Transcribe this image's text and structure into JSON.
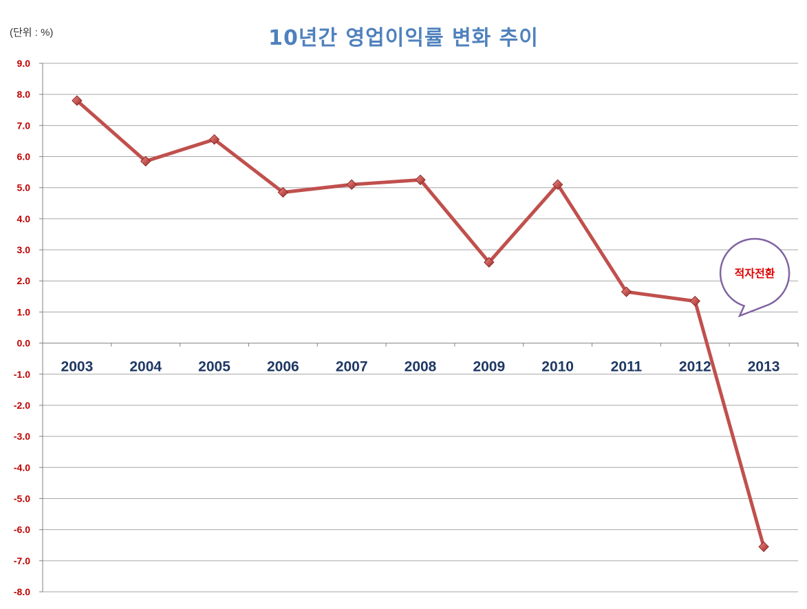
{
  "header": {
    "unit_label": "(단위 : %)",
    "title": "10년간 영업이익률 변화 추이"
  },
  "chart_data": {
    "type": "line",
    "title": "10년간 영업이익률 변화 추이",
    "unit": "(단위 : %)",
    "xlabel": "",
    "ylabel": "",
    "categories": [
      "2003",
      "2004",
      "2005",
      "2006",
      "2007",
      "2008",
      "2009",
      "2010",
      "2011",
      "2012",
      "2013"
    ],
    "series": [
      {
        "values": [
          7.8,
          5.85,
          6.55,
          4.85,
          5.1,
          5.25,
          2.6,
          5.1,
          1.65,
          1.35,
          -6.55
        ]
      }
    ],
    "ylim": [
      -8.0,
      9.0
    ],
    "yticks": [
      "9.0",
      "8.0",
      "7.0",
      "6.0",
      "5.0",
      "4.0",
      "3.0",
      "2.0",
      "1.0",
      "0.0",
      "-1.0",
      "-2.0",
      "-3.0",
      "-4.0",
      "-5.0",
      "-6.0",
      "-7.0",
      "-8.0"
    ],
    "grid": true,
    "legend": "none",
    "annotation": {
      "text": "적자전환",
      "category": "2013"
    },
    "colors": {
      "line": "#c0504d",
      "marker": "#c0504d",
      "ytick": "#c00000",
      "xtick": "#1f3864",
      "title": "#4f81bd",
      "callout_border": "#8064a2",
      "callout_text": "#e00000",
      "grid": "#a6a6a6"
    }
  }
}
